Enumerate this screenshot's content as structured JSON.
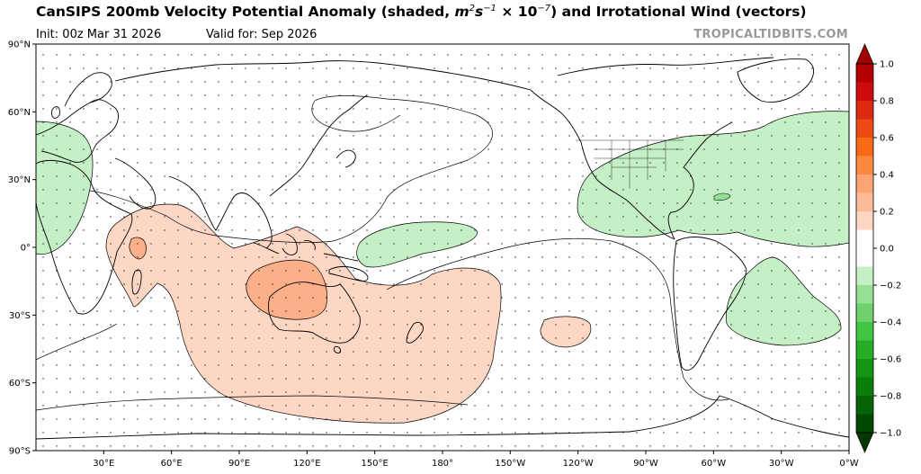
{
  "header": {
    "title_main": "CanSIPS 200mb Velocity Potential Anomaly (shaded, ",
    "title_unit_m": "m",
    "title_unit_m_exp": "2",
    "title_unit_s": "s",
    "title_unit_s_exp": "−1",
    "title_unit_times": " × 10",
    "title_unit_ten_exp": "−7",
    "title_rest": ") and Irrotational Wind (vectors)",
    "init": "Init: 00z Mar 31 2026",
    "valid": "Valid for: Sep 2026",
    "credit": "TROPICALTIDBITS.COM"
  },
  "map": {
    "lat_labels": [
      "90°N",
      "60°N",
      "30°N",
      "0°",
      "30°S",
      "60°S",
      "90°S"
    ],
    "lon_labels": [
      "30°E",
      "60°E",
      "90°E",
      "120°E",
      "150°E",
      "180°",
      "150°W",
      "120°W",
      "90°W",
      "60°W",
      "30°W",
      "0°W"
    ],
    "anomaly_regions": [
      {
        "name": "indian-ocean-australia-positive",
        "sign": "positive",
        "level": 0.2
      },
      {
        "name": "maritime-continent-core",
        "sign": "positive",
        "level": 0.4
      },
      {
        "name": "east-africa-core",
        "sign": "positive",
        "level": 0.4
      },
      {
        "name": "south-pacific-positive",
        "sign": "positive",
        "level": 0.2
      },
      {
        "name": "americas-atlantic-negative",
        "sign": "negative",
        "level": -0.2
      },
      {
        "name": "west-pacific-negative",
        "sign": "negative",
        "level": -0.2
      },
      {
        "name": "south-atlantic-negative",
        "sign": "negative",
        "level": -0.2
      },
      {
        "name": "europe-africa-negative",
        "sign": "negative",
        "level": -0.2
      }
    ]
  },
  "colorbar": {
    "tick_labels": [
      "1.0",
      "0.8",
      "0.6",
      "0.4",
      "0.2",
      "0.0",
      "−0.2",
      "−0.4",
      "−0.6",
      "−0.8",
      "−1.0"
    ],
    "colors_top_to_bottom": [
      "#b30000",
      "#cc0c0c",
      "#dc2a10",
      "#ec4a14",
      "#f86a14",
      "#fb8a3e",
      "#fca473",
      "#fcbc98",
      "#fdd6c4",
      "#ffffff",
      "#ffffff",
      "#c5efc5",
      "#96e096",
      "#6fd26f",
      "#44c444",
      "#25ad25",
      "#149614",
      "#0a7e0a",
      "#066406",
      "#024a02"
    ],
    "arrow_top_color": "#a00000",
    "arrow_bottom_color": "#013a01"
  },
  "colors": {
    "positive_light": "#fdd6c4",
    "positive_mid": "#fcb08a",
    "negative_light": "#c5efc5",
    "coast": "#000000"
  }
}
